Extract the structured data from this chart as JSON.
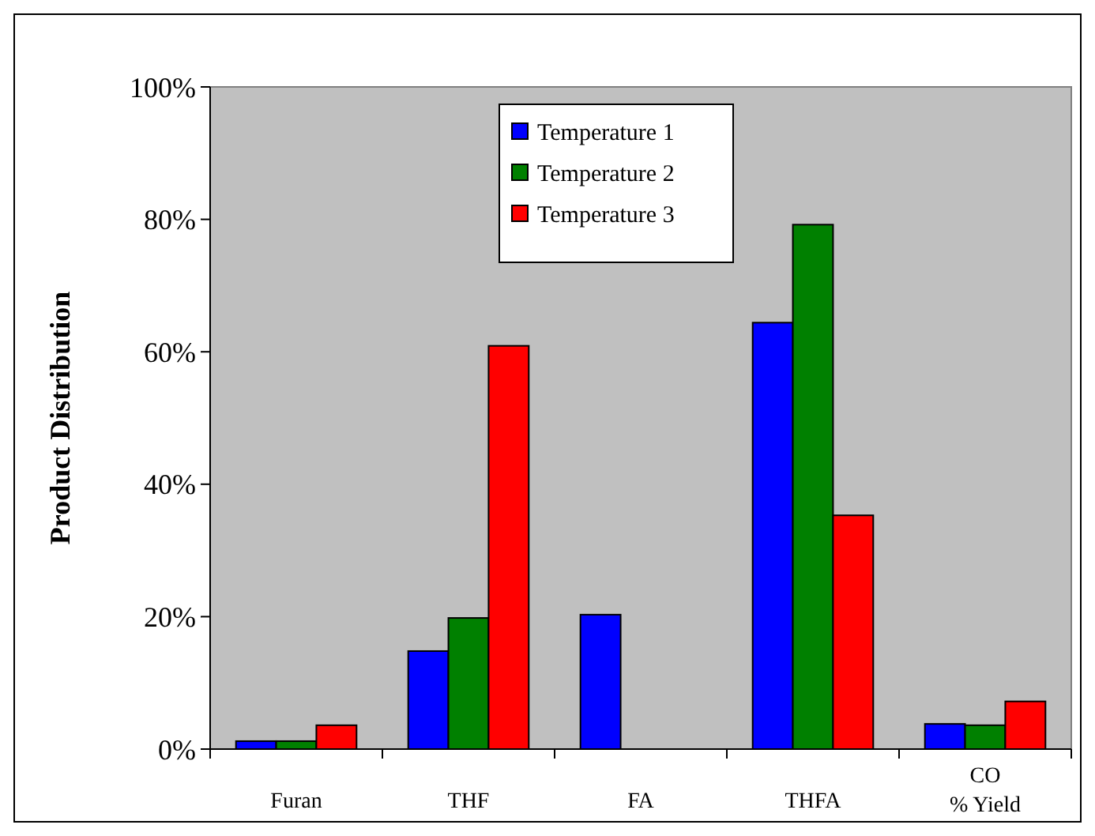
{
  "chart_data": {
    "type": "bar",
    "ylabel": "Product Distribution",
    "categories": [
      "Furan",
      "THF",
      "FA",
      "THFA",
      "CO\n% Yield"
    ],
    "series": [
      {
        "name": "Temperature 1",
        "color": "#0000ff",
        "values": [
          1.2,
          14.8,
          20.3,
          64.4,
          3.8
        ]
      },
      {
        "name": "Temperature 2",
        "color": "#008000",
        "values": [
          1.2,
          19.8,
          0,
          79.2,
          3.6
        ]
      },
      {
        "name": "Temperature 3",
        "color": "#ff0000",
        "values": [
          3.6,
          60.9,
          0,
          35.3,
          7.2
        ]
      }
    ],
    "ylim": [
      0,
      100
    ],
    "yticks": [
      {
        "value": 0,
        "label": "0%"
      },
      {
        "value": 20,
        "label": "20%"
      },
      {
        "value": 40,
        "label": "40%"
      },
      {
        "value": 60,
        "label": "60%"
      },
      {
        "value": 80,
        "label": "80%"
      },
      {
        "value": 100,
        "label": "100%"
      }
    ],
    "grid": false,
    "legend": "top"
  }
}
